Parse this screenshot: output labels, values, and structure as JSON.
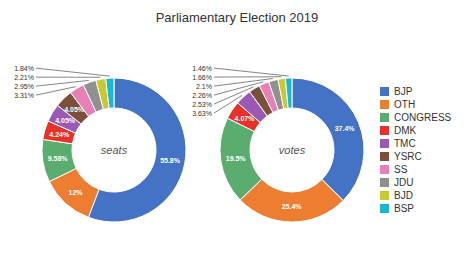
{
  "chart_data": [
    {
      "type": "pie",
      "title": "Parliamentary Election 2019",
      "annotations": [
        "seats"
      ],
      "categories": [
        "BJP",
        "OTH",
        "CONGRESS",
        "DMK",
        "TMC",
        "YSRC",
        "SS",
        "JDU",
        "BJD",
        "BSP"
      ],
      "values": [
        55.8,
        12.0,
        9.58,
        4.24,
        4.05,
        4.05,
        3.31,
        2.95,
        2.21,
        1.84
      ],
      "value_labels": [
        "55.8%",
        "12%",
        "9.58%",
        "4.24%",
        "4.05%",
        "4.05%",
        "3.31%",
        "2.95%",
        "2.21%",
        "1.84%"
      ],
      "colors": [
        "#4472C4",
        "#ED7D31",
        "#5BAD6F",
        "#E8312A",
        "#9B59B6",
        "#7B4F3A",
        "#E87FB5",
        "#909090",
        "#C8C830",
        "#1AB8D0"
      ],
      "legend": "right",
      "data_labels": true
    },
    {
      "type": "pie",
      "annotations": [
        "votes"
      ],
      "categories": [
        "BJP",
        "OTH",
        "CONGRESS",
        "DMK",
        "TMC",
        "YSRC",
        "SS",
        "JDU",
        "BJD",
        "BSP"
      ],
      "values": [
        37.4,
        25.4,
        19.5,
        4.07,
        3.63,
        2.53,
        2.26,
        2.1,
        1.66,
        1.46
      ],
      "value_labels": [
        "37.4%",
        "25.4%",
        "19.5%",
        "4.07%",
        "3.63%",
        "2.53%",
        "2.26%",
        "2.1%",
        "1.66%",
        "1.46%"
      ],
      "colors": [
        "#4472C4",
        "#ED7D31",
        "#5BAD6F",
        "#E8312A",
        "#9B59B6",
        "#7B4F3A",
        "#E87FB5",
        "#909090",
        "#C8C830",
        "#1AB8D0"
      ],
      "data_labels": true
    }
  ]
}
